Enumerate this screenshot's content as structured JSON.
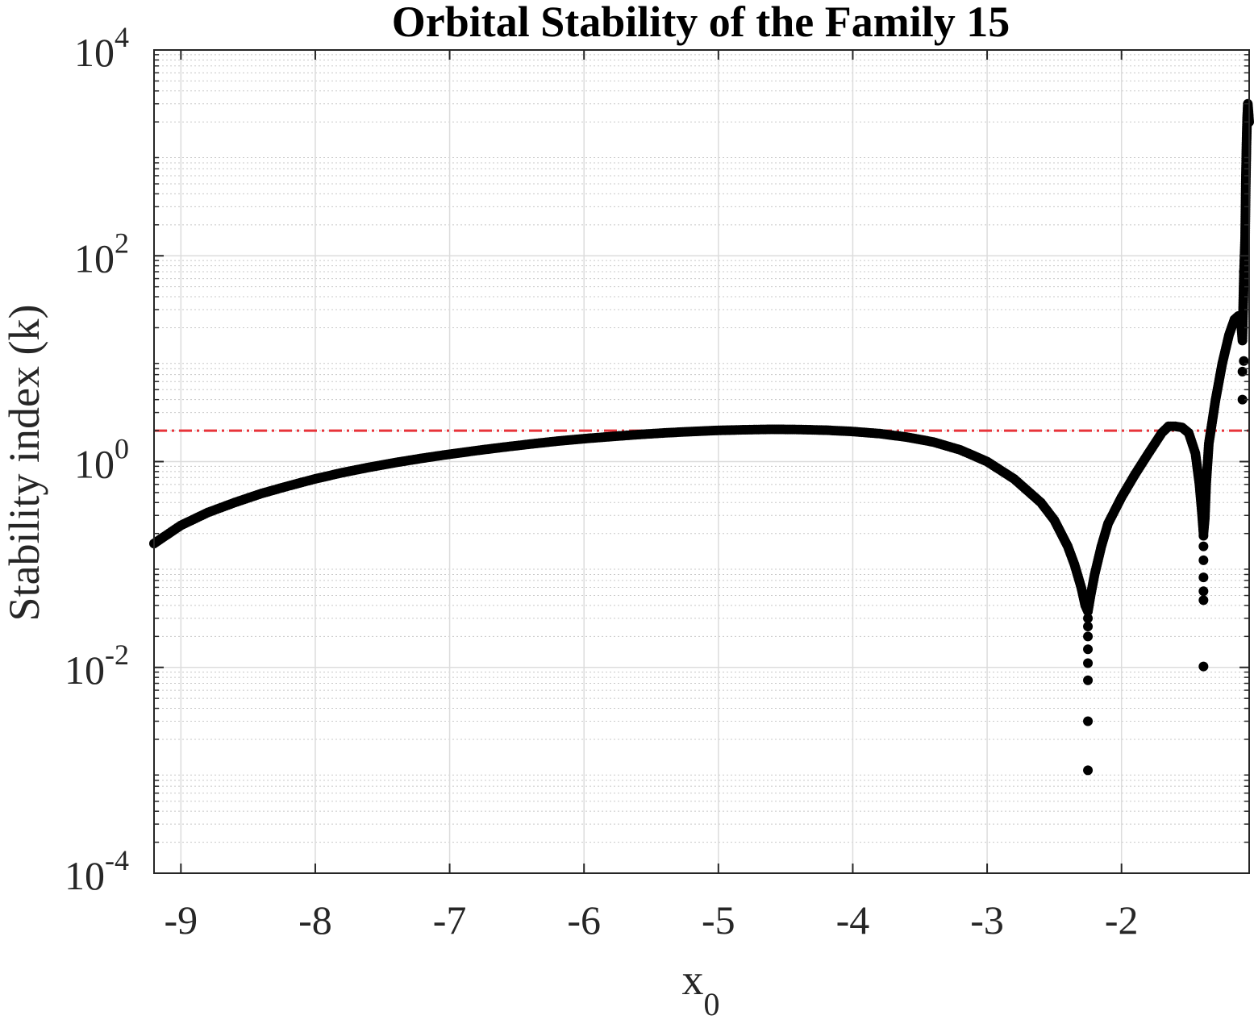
{
  "chart_data": {
    "type": "scatter",
    "title": "Orbital Stability of the Family 15",
    "xlabel": "x",
    "xlabel_subscript": "0",
    "ylabel": "Stability index (k)",
    "y_scale": "log",
    "grid": "on",
    "xlim": [
      -9.2,
      -1.05
    ],
    "ylim": [
      0.0001,
      10000
    ],
    "x_ticks": [
      -9,
      -8,
      -7,
      -6,
      -5,
      -4,
      -3,
      -2
    ],
    "x_tick_labels": [
      "-9",
      "-8",
      "-7",
      "-6",
      "-5",
      "-4",
      "-3",
      "-2"
    ],
    "y_ticks": [
      0.0001,
      0.01,
      1,
      100,
      10000
    ],
    "y_tick_labels": [
      {
        "base": "10",
        "exp": "-4"
      },
      {
        "base": "10",
        "exp": "-2"
      },
      {
        "base": "10",
        "exp": "0"
      },
      {
        "base": "10",
        "exp": "2"
      },
      {
        "base": "10",
        "exp": "4"
      }
    ],
    "reference_line": {
      "y": 2,
      "style": "dash-dot",
      "color": "#e8343a"
    },
    "series": [
      {
        "color": "#000000",
        "points": [
          [
            -9.2,
            0.16
          ],
          [
            -9.0,
            0.24
          ],
          [
            -8.8,
            0.32
          ],
          [
            -8.6,
            0.4
          ],
          [
            -8.4,
            0.49
          ],
          [
            -8.2,
            0.58
          ],
          [
            -8.0,
            0.68
          ],
          [
            -7.8,
            0.78
          ],
          [
            -7.6,
            0.88
          ],
          [
            -7.4,
            0.98
          ],
          [
            -7.2,
            1.08
          ],
          [
            -7.0,
            1.18
          ],
          [
            -6.8,
            1.28
          ],
          [
            -6.6,
            1.38
          ],
          [
            -6.4,
            1.48
          ],
          [
            -6.2,
            1.58
          ],
          [
            -6.0,
            1.67
          ],
          [
            -5.8,
            1.75
          ],
          [
            -5.6,
            1.83
          ],
          [
            -5.4,
            1.9
          ],
          [
            -5.2,
            1.96
          ],
          [
            -5.0,
            2.01
          ],
          [
            -4.8,
            2.04
          ],
          [
            -4.6,
            2.06
          ],
          [
            -4.4,
            2.05
          ],
          [
            -4.2,
            2.02
          ],
          [
            -4.0,
            1.96
          ],
          [
            -3.8,
            1.87
          ],
          [
            -3.6,
            1.73
          ],
          [
            -3.4,
            1.55
          ],
          [
            -3.2,
            1.3
          ],
          [
            -3.0,
            1.0
          ],
          [
            -2.8,
            0.68
          ],
          [
            -2.6,
            0.4
          ],
          [
            -2.5,
            0.27
          ],
          [
            -2.4,
            0.15
          ],
          [
            -2.35,
            0.1
          ],
          [
            -2.3,
            0.06
          ],
          [
            -2.27,
            0.04
          ],
          [
            -2.25,
            0.035
          ],
          [
            -2.23,
            0.05
          ],
          [
            -2.2,
            0.08
          ],
          [
            -2.15,
            0.15
          ],
          [
            -2.1,
            0.25
          ],
          [
            -2.0,
            0.45
          ],
          [
            -1.9,
            0.75
          ],
          [
            -1.8,
            1.2
          ],
          [
            -1.7,
            1.9
          ],
          [
            -1.65,
            2.2
          ],
          [
            -1.6,
            2.2
          ],
          [
            -1.55,
            2.15
          ],
          [
            -1.5,
            1.9
          ],
          [
            -1.45,
            1.2
          ],
          [
            -1.42,
            0.6
          ],
          [
            -1.4,
            0.3
          ],
          [
            -1.39,
            0.2
          ],
          [
            -1.38,
            0.28
          ],
          [
            -1.37,
            0.6
          ],
          [
            -1.35,
            1.5
          ],
          [
            -1.3,
            4.0
          ],
          [
            -1.25,
            9.0
          ],
          [
            -1.2,
            17.0
          ],
          [
            -1.16,
            24.0
          ],
          [
            -1.13,
            26.0
          ],
          [
            -1.11,
            22.0
          ],
          [
            -1.1,
            15.0
          ],
          [
            -1.09,
            60.0
          ],
          [
            -1.08,
            150.0
          ],
          [
            -1.075,
            500.0
          ],
          [
            -1.07,
            1200.0
          ],
          [
            -1.065,
            2200.0
          ],
          [
            -1.06,
            3000.0
          ],
          [
            -1.055,
            2500.0
          ],
          [
            -1.05,
            2000.0
          ]
        ],
        "isolated_points": [
          [
            -2.25,
            0.001
          ],
          [
            -2.25,
            0.003
          ],
          [
            -2.25,
            0.0075
          ],
          [
            -2.25,
            0.011
          ],
          [
            -2.25,
            0.015
          ],
          [
            -2.25,
            0.02
          ],
          [
            -2.25,
            0.025
          ],
          [
            -2.25,
            0.03
          ],
          [
            -1.39,
            0.0102
          ],
          [
            -1.39,
            0.045
          ],
          [
            -1.39,
            0.055
          ],
          [
            -1.39,
            0.075
          ],
          [
            -1.39,
            0.11
          ],
          [
            -1.39,
            0.15
          ],
          [
            -1.39,
            0.19
          ],
          [
            -1.1,
            4.0
          ],
          [
            -1.1,
            7.5
          ],
          [
            -1.09,
            9.5
          ],
          [
            -1.09,
            50.0
          ],
          [
            -1.09,
            70.0
          ],
          [
            -1.08,
            90.0
          ],
          [
            -1.08,
            120.0
          ]
        ]
      }
    ]
  }
}
